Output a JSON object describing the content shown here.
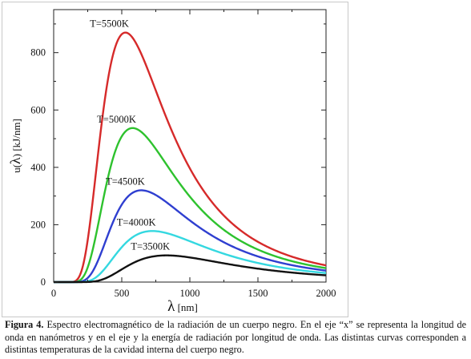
{
  "caption": {
    "label": "Figura 4.",
    "text": " Espectro electromagnético de la radiación de un cuerpo negro. En el eje “x” se representa la longitud de onda en nanómetros y en el eje y la energía de radiación por longitud de onda. Las distintas curvas corresponden a distintas temperaturas de la cavidad interna del cuerpo negro."
  },
  "chart_data": {
    "type": "line",
    "title": "",
    "xlabel_symbol": "λ",
    "xlabel_unit": " [nm]",
    "ylabel_prefix": "u(",
    "ylabel_symbol": "λ",
    "ylabel_suffix": ")  [kJ/nm]",
    "xlim": [
      0,
      2000
    ],
    "ylim": [
      0,
      950
    ],
    "xticks": [
      0,
      500,
      1000,
      1500,
      2000
    ],
    "yticks": [
      0,
      200,
      400,
      600,
      800
    ],
    "grid": false,
    "series": [
      {
        "name": "T=5500K",
        "temperature": 5500,
        "color": "#d62a2a",
        "peak": 870
      },
      {
        "name": "T=5000K",
        "temperature": 5000,
        "color": "#2ec22e",
        "peak": 537
      },
      {
        "name": "T=4500K",
        "temperature": 4500,
        "color": "#2f3fd0",
        "peak": 320
      },
      {
        "name": "T=4000K",
        "temperature": 4000,
        "color": "#34d8e0",
        "peak": 178
      },
      {
        "name": "T=3500K",
        "temperature": 3500,
        "color": "#111111",
        "peak": 93
      }
    ]
  }
}
